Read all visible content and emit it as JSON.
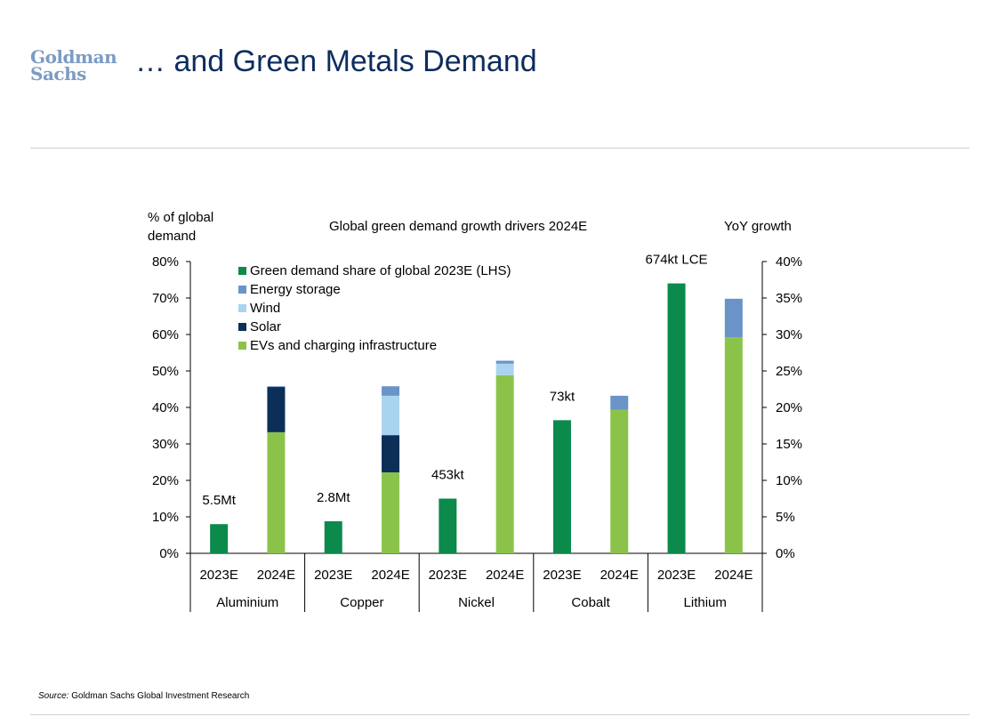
{
  "header": {
    "logo_line1": "Goldman",
    "logo_line2": "Sachs",
    "title": "… and Green Metals Demand"
  },
  "footer": {
    "source_label": "Source:",
    "source_text": "Goldman Sachs Global Investment Research"
  },
  "chart_data": {
    "type": "bar",
    "title": "Global green demand growth drivers 2024E",
    "left_axis_label_line1": "% of global",
    "left_axis_label_line2": "demand",
    "right_axis_label": "YoY growth",
    "ylim_left": [
      0,
      80
    ],
    "ylim_right": [
      0,
      40
    ],
    "left_ticks": [
      "0%",
      "10%",
      "20%",
      "30%",
      "40%",
      "50%",
      "60%",
      "70%",
      "80%"
    ],
    "right_ticks": [
      "0%",
      "5%",
      "10%",
      "15%",
      "20%",
      "25%",
      "30%",
      "35%",
      "40%"
    ],
    "groups": [
      "Aluminium",
      "Copper",
      "Nickel",
      "Cobalt",
      "Lithium"
    ],
    "categories": [
      "2023E",
      "2024E"
    ],
    "legend_placement": "top-left",
    "legend": [
      {
        "name": "Green demand share of global 2023E (LHS)",
        "color": "#0b8a4b"
      },
      {
        "name": "Energy storage",
        "color": "#6a93c8"
      },
      {
        "name": "Wind",
        "color": "#a9d4ef"
      },
      {
        "name": "Solar",
        "color": "#0b2f57"
      },
      {
        "name": "EVs and charging infrastructure",
        "color": "#8bc34a"
      }
    ],
    "share_2023E_lhs": [
      {
        "group": "Aluminium",
        "value": 8,
        "label": "5.5Mt"
      },
      {
        "group": "Copper",
        "value": 8.8,
        "label": "2.8Mt"
      },
      {
        "group": "Nickel",
        "value": 15,
        "label": "453kt"
      },
      {
        "group": "Cobalt",
        "value": 36.5,
        "label": "73kt"
      },
      {
        "group": "Lithium",
        "value": 74,
        "label": "674kt LCE"
      }
    ],
    "growth_2024E_rhs": [
      {
        "group": "Aluminium",
        "evs": 16.6,
        "solar": 6.2,
        "wind": 0,
        "energy_storage": 0.1
      },
      {
        "group": "Copper",
        "evs": 11.1,
        "solar": 5.1,
        "wind": 5.4,
        "energy_storage": 1.3
      },
      {
        "group": "Nickel",
        "evs": 24.4,
        "solar": 0,
        "wind": 1.6,
        "energy_storage": 0.4
      },
      {
        "group": "Cobalt",
        "evs": 19.7,
        "solar": 0,
        "wind": 0,
        "energy_storage": 1.9
      },
      {
        "group": "Lithium",
        "evs": 29.6,
        "solar": 0,
        "wind": 0,
        "energy_storage": 5.3
      }
    ]
  }
}
